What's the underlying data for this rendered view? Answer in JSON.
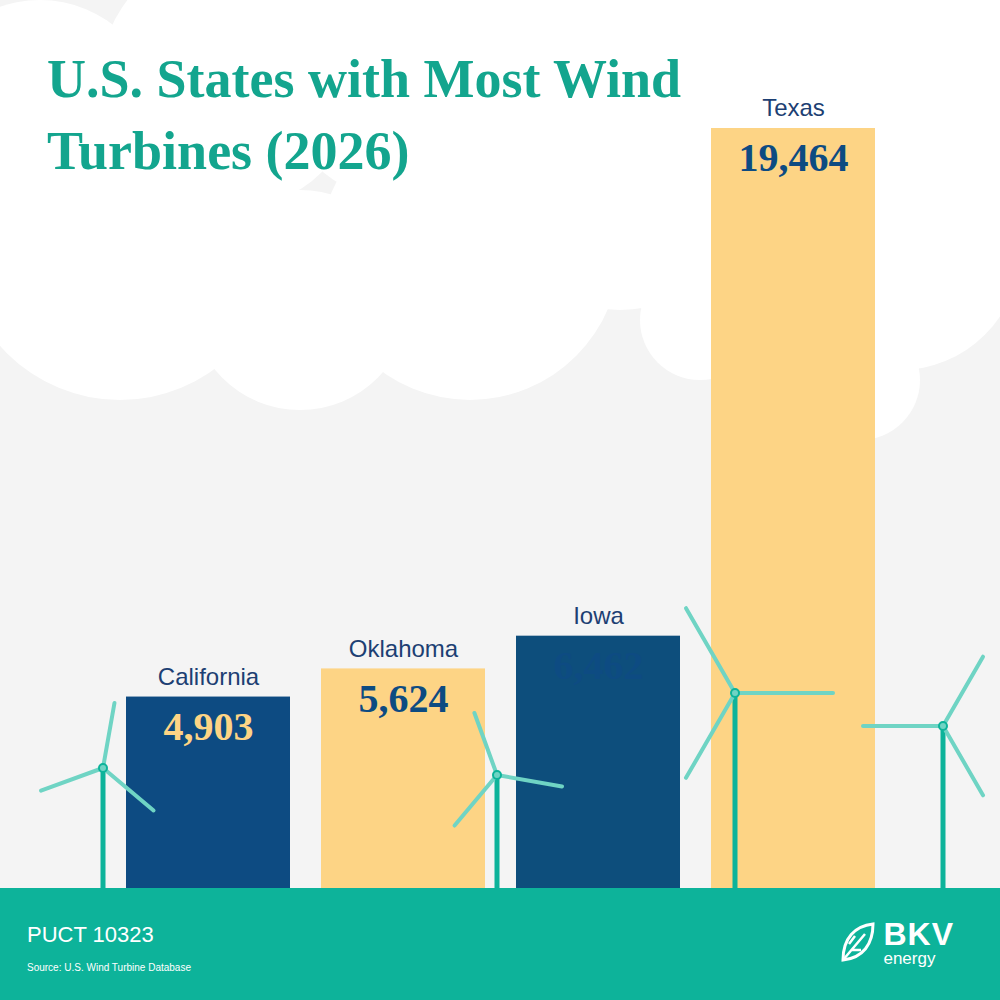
{
  "chart_data": {
    "type": "bar",
    "title": "U.S. States with Most Wind Turbines (2026)",
    "categories": [
      "California",
      "Oklahoma",
      "Iowa",
      "Texas"
    ],
    "values": [
      4903,
      5624,
      6462,
      19464
    ],
    "value_labels": [
      "4,903",
      "5,624",
      "6,462",
      "19,464"
    ],
    "colors": [
      "#0d4b82",
      "#fdd485",
      "#0d4e7c",
      "#fdd485"
    ],
    "data_labels": true,
    "tick_labels": false,
    "caption": "PUCT 10323",
    "source": "Source: U.S. Wind Turbine Database",
    "logo": "BKV energy"
  }
}
